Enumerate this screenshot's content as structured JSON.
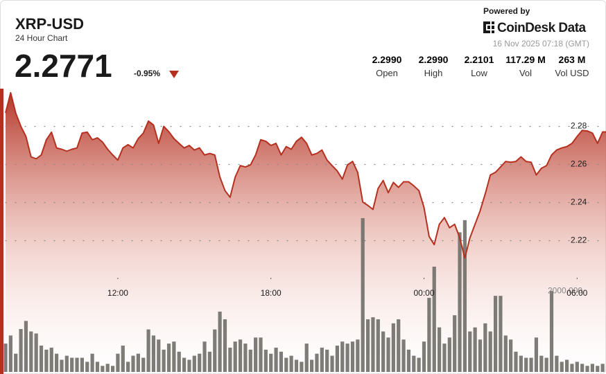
{
  "header": {
    "title": "XRP-USD",
    "subtitle": "24 Hour Chart",
    "price": "2.2771",
    "change": "-0.95%",
    "powered_by": "Powered by",
    "brand": "CoinDesk Data",
    "timestamp": "16 Nov 2025 07:18 (GMT)"
  },
  "stats": [
    {
      "value": "2.2990",
      "label": "Open"
    },
    {
      "value": "2.2990",
      "label": "High"
    },
    {
      "value": "2.2101",
      "label": "Low"
    },
    {
      "value": "117.29 M",
      "label": "Vol"
    },
    {
      "value": "263 M",
      "label": "Vol USD"
    }
  ],
  "chart_data": {
    "type": "line",
    "x": [
      "07:36",
      "07:48",
      "08:00",
      "08:12",
      "08:24",
      "08:36",
      "08:48",
      "09:00",
      "09:12",
      "09:24",
      "09:36",
      "09:48",
      "10:00",
      "10:12",
      "10:24",
      "10:36",
      "10:48",
      "11:00",
      "11:12",
      "11:24",
      "11:36",
      "11:48",
      "12:00",
      "12:12",
      "12:24",
      "12:36",
      "12:48",
      "13:00",
      "13:12",
      "13:24",
      "13:36",
      "13:48",
      "14:00",
      "14:12",
      "14:24",
      "14:36",
      "14:48",
      "15:00",
      "15:12",
      "15:24",
      "15:36",
      "15:48",
      "16:00",
      "16:12",
      "16:24",
      "16:36",
      "16:48",
      "17:00",
      "17:12",
      "17:24",
      "17:36",
      "17:48",
      "18:00",
      "18:12",
      "18:24",
      "18:36",
      "18:48",
      "19:00",
      "19:12",
      "19:24",
      "19:36",
      "19:48",
      "20:00",
      "20:12",
      "20:24",
      "20:36",
      "20:48",
      "21:00",
      "21:12",
      "21:24",
      "21:36",
      "21:48",
      "22:00",
      "22:12",
      "22:24",
      "22:36",
      "22:48",
      "23:00",
      "23:12",
      "23:24",
      "23:36",
      "23:48",
      "00:00",
      "00:12",
      "00:24",
      "00:36",
      "00:48",
      "01:00",
      "01:12",
      "01:24",
      "01:36",
      "01:48",
      "02:00",
      "02:12",
      "02:24",
      "02:36",
      "02:48",
      "03:00",
      "03:12",
      "03:24",
      "03:36",
      "03:48",
      "04:00",
      "04:12",
      "04:24",
      "04:36",
      "04:48",
      "05:00",
      "05:12",
      "05:24",
      "05:36",
      "05:48",
      "06:00",
      "06:12",
      "06:24",
      "06:36",
      "06:48",
      "07:00",
      "07:12"
    ],
    "series": [
      {
        "color": "#b5301f",
        "values": [
          2.2871,
          2.2977,
          2.287,
          2.28,
          2.2747,
          2.264,
          2.263,
          2.265,
          2.273,
          2.277,
          2.2687,
          2.268,
          2.267,
          2.268,
          2.2687,
          2.2765,
          2.277,
          2.273,
          2.274,
          2.2718,
          2.268,
          2.265,
          2.2623,
          2.2687,
          2.2704,
          2.2687,
          2.2736,
          2.2765,
          2.2828,
          2.2807,
          2.2711,
          2.28,
          2.2772,
          2.2736,
          2.2711,
          2.2687,
          2.27,
          2.2676,
          2.2687,
          2.265,
          2.2658,
          2.265,
          2.2534,
          2.2463,
          2.2428,
          2.2534,
          2.2594,
          2.2587,
          2.2598,
          2.265,
          2.273,
          2.2722,
          2.27,
          2.2711,
          2.265,
          2.2694,
          2.268,
          2.2722,
          2.2743,
          2.2711,
          2.265,
          2.2658,
          2.2676,
          2.2623,
          2.2594,
          2.2566,
          2.2523,
          2.2598,
          2.2616,
          2.2559,
          2.2403,
          2.2385,
          2.2364,
          2.2474,
          2.2516,
          2.2452,
          2.2506,
          2.248,
          2.2509,
          2.2509,
          2.2488,
          2.2463,
          2.2374,
          2.2222,
          2.2179,
          2.2286,
          2.2321,
          2.2268,
          2.2286,
          2.2215,
          2.2109,
          2.2215,
          2.2286,
          2.2357,
          2.2446,
          2.2545,
          2.2559,
          2.2587,
          2.2616,
          2.2612,
          2.2616,
          2.264,
          2.2616,
          2.2612,
          2.2545,
          2.258,
          2.2594,
          2.265,
          2.2676,
          2.2687,
          2.2694,
          2.2711,
          2.2747,
          2.2779,
          2.2776,
          2.2765,
          2.2711,
          2.2771,
          2.2771
        ]
      },
      {
        "type": "bar",
        "axis": "y2",
        "color": "#6f6e68",
        "values": [
          700,
          900,
          450,
          1060,
          1260,
          1000,
          950,
          650,
          550,
          600,
          450,
          300,
          400,
          350,
          350,
          350,
          250,
          450,
          250,
          150,
          200,
          150,
          450,
          650,
          250,
          400,
          450,
          350,
          1050,
          900,
          800,
          550,
          700,
          750,
          500,
          350,
          300,
          400,
          450,
          750,
          500,
          1050,
          1490,
          1300,
          600,
          750,
          800,
          700,
          550,
          850,
          850,
          550,
          450,
          600,
          500,
          350,
          400,
          300,
          250,
          700,
          300,
          450,
          600,
          550,
          400,
          650,
          750,
          700,
          750,
          800,
          3800,
          1300,
          1350,
          1300,
          1000,
          850,
          1200,
          1300,
          800,
          550,
          400,
          350,
          750,
          1830,
          2600,
          1100,
          700,
          850,
          1400,
          3450,
          3750,
          1000,
          1100,
          800,
          1200,
          1000,
          1880,
          1880,
          900,
          800,
          500,
          400,
          350,
          350,
          850,
          400,
          350,
          2000,
          400,
          250,
          300,
          200,
          250,
          200,
          150,
          200,
          150,
          200,
          150
        ]
      }
    ],
    "xticks": [
      "12:00",
      "18:00",
      "00:00",
      "06:00"
    ],
    "ylim": [
      2.15,
      2.31
    ],
    "yticks": [
      2.22,
      2.24,
      2.26,
      2.28
    ],
    "y2lim": [
      0,
      4500
    ],
    "y2ticks": [
      {
        "value": 2000,
        "label": "2000.000"
      }
    ],
    "grid": true
  }
}
